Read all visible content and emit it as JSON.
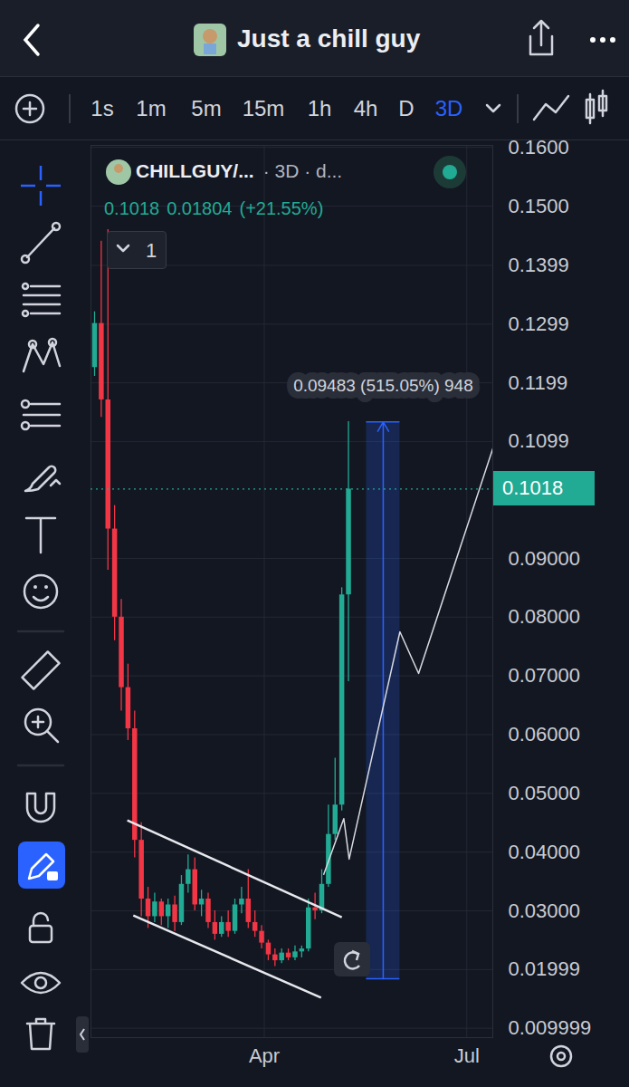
{
  "header": {
    "title": "Just a chill guy"
  },
  "timeframes": {
    "items": [
      "1s",
      "1m",
      "5m",
      "15m",
      "1h",
      "4h",
      "D",
      "3D"
    ],
    "active": "3D"
  },
  "chart_data": {
    "type": "candlestick",
    "title": "CHILLGUY/...",
    "subtitle": "· 3D · d...",
    "ohlc_text": [
      "0.1018",
      "0.01804",
      "(+21.55%)"
    ],
    "pane_label": "1",
    "x": [
      0,
      1,
      2,
      3,
      4,
      5,
      6,
      7,
      8,
      9,
      10,
      11,
      12,
      13,
      14,
      15,
      16,
      17,
      18,
      19,
      20,
      21,
      22,
      23,
      24,
      25,
      26,
      27,
      28,
      29,
      30,
      31,
      32,
      33,
      34,
      35,
      36,
      37,
      38
    ],
    "open": [
      0.1225,
      0.13,
      0.117,
      0.095,
      0.08,
      0.068,
      0.061,
      0.042,
      0.032,
      0.029,
      0.0315,
      0.029,
      0.031,
      0.028,
      0.0345,
      0.037,
      0.031,
      0.032,
      0.028,
      0.026,
      0.028,
      0.0265,
      0.031,
      0.032,
      0.028,
      0.0265,
      0.0245,
      0.0225,
      0.0215,
      0.0228,
      0.022,
      0.023,
      0.0235,
      0.0305,
      0.03,
      0.0345,
      0.043,
      0.048,
      0.0838
    ],
    "high": [
      0.132,
      0.144,
      0.146,
      0.099,
      0.083,
      0.072,
      0.064,
      0.045,
      0.034,
      0.033,
      0.032,
      0.032,
      0.0325,
      0.036,
      0.0395,
      0.039,
      0.0335,
      0.033,
      0.03,
      0.029,
      0.03,
      0.032,
      0.034,
      0.037,
      0.03,
      0.0275,
      0.025,
      0.0235,
      0.0235,
      0.0235,
      0.024,
      0.024,
      0.032,
      0.033,
      0.037,
      0.048,
      0.056,
      0.085,
      0.1133
    ],
    "low": [
      0.121,
      0.114,
      0.088,
      0.076,
      0.064,
      0.059,
      0.039,
      0.029,
      0.027,
      0.028,
      0.0275,
      0.027,
      0.0265,
      0.0275,
      0.033,
      0.03,
      0.029,
      0.027,
      0.025,
      0.0255,
      0.0255,
      0.026,
      0.0295,
      0.027,
      0.0255,
      0.0235,
      0.0215,
      0.0205,
      0.021,
      0.0215,
      0.0215,
      0.022,
      0.023,
      0.0285,
      0.0295,
      0.034,
      0.042,
      0.047,
      0.069
    ],
    "close": [
      0.13,
      0.117,
      0.095,
      0.08,
      0.068,
      0.061,
      0.042,
      0.032,
      0.029,
      0.0315,
      0.029,
      0.031,
      0.028,
      0.0345,
      0.037,
      0.031,
      0.032,
      0.028,
      0.026,
      0.028,
      0.0265,
      0.031,
      0.032,
      0.028,
      0.0265,
      0.0245,
      0.0225,
      0.0215,
      0.0228,
      0.022,
      0.023,
      0.0235,
      0.0305,
      0.03,
      0.0345,
      0.043,
      0.048,
      0.0838,
      0.1018
    ],
    "xlim": [
      -0.54,
      59.6
    ],
    "xticks": [
      {
        "value": 25.4,
        "label": "Apr"
      },
      {
        "value": 55.7,
        "label": "Jul"
      }
    ],
    "ylim": [
      0.0084,
      0.16033
    ],
    "yticks": [
      {
        "value": 0.16,
        "label": "0.1600"
      },
      {
        "value": 0.15,
        "label": "0.1500"
      },
      0.1399,
      0.1299,
      0.1199,
      0.1099,
      {
        "value": 0.09,
        "label": "0.09000"
      },
      {
        "value": 0.08,
        "label": "0.08000"
      },
      {
        "value": 0.07,
        "label": "0.07000"
      },
      {
        "value": 0.06,
        "label": "0.06000"
      },
      {
        "value": 0.05,
        "label": "0.05000"
      },
      {
        "value": 0.04,
        "label": "0.04000"
      },
      {
        "value": 0.03,
        "label": "0.03000"
      },
      0.01999,
      0.009999
    ],
    "grid": true,
    "last_price": 0.1018,
    "trend_lines": [
      {
        "x": [
          4.9,
          37
        ],
        "y": [
          0.0454,
          0.0289
        ]
      },
      {
        "x": [
          5.8,
          33.9
        ],
        "y": [
          0.0292,
          0.0152
        ]
      }
    ],
    "projection": {
      "x": [
        34.3,
        37.3,
        38.1,
        45.7,
        48.5,
        59.6
      ],
      "y": [
        0.0362,
        0.0457,
        0.0388,
        0.0775,
        0.0704,
        0.1087
      ]
    },
    "measure": {
      "x": [
        40.7,
        45.7
      ],
      "y": [
        0.01841,
        0.11324
      ],
      "label": "0.09483 (515.05%) 948"
    }
  }
}
